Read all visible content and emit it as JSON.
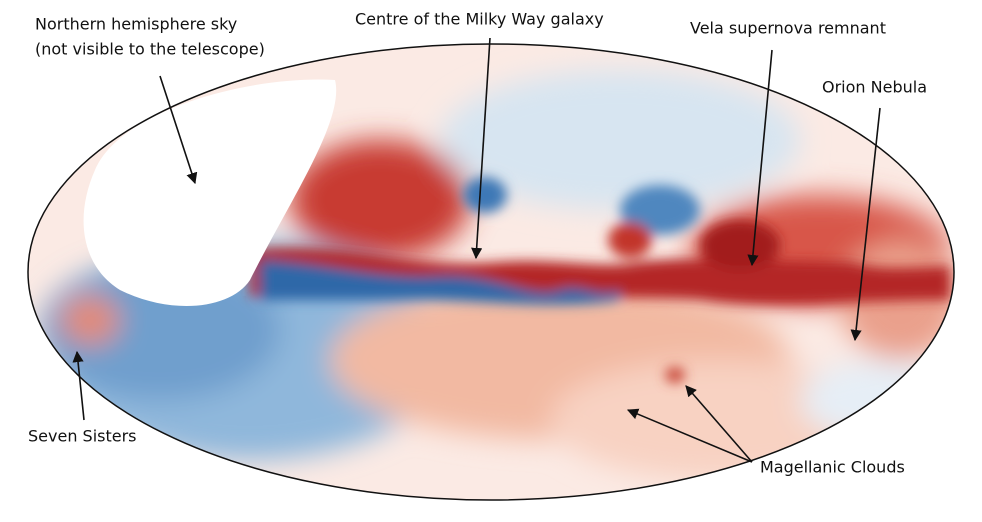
{
  "annotations": [
    {
      "lines": [
        "Northern hemisphere sky",
        "(not visible to the telescope)"
      ]
    },
    {
      "lines": [
        "Centre of the Milky Way galaxy"
      ]
    },
    {
      "lines": [
        "Vela supernova remnant"
      ]
    },
    {
      "lines": [
        "Orion Nebula"
      ]
    },
    {
      "lines": [
        "Seven Sisters"
      ]
    },
    {
      "lines": [
        "Magellanic Clouds"
      ]
    }
  ]
}
